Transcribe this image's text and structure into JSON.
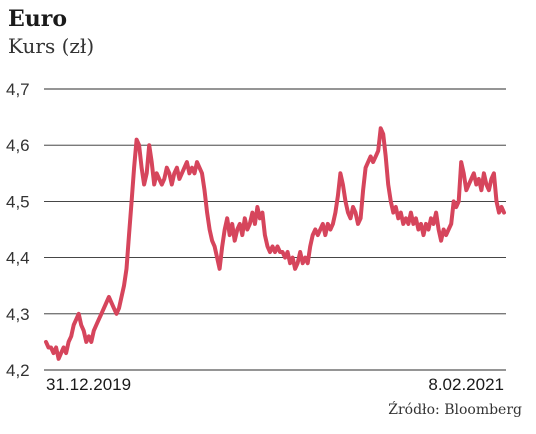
{
  "chart_data": {
    "type": "line",
    "title": "Euro",
    "subtitle": "Kurs (zł)",
    "source": "Źródło: Bloomberg",
    "ylim": [
      4.2,
      4.7
    ],
    "yticks": [
      4.7,
      4.6,
      4.5,
      4.4,
      4.3,
      4.2
    ],
    "ytick_labels": [
      "4,7",
      "4,6",
      "4,5",
      "4,4",
      "4,3",
      "4,2"
    ],
    "grid": true,
    "x_labels": [
      "31.12.2019",
      "8.02.2021"
    ],
    "color": "#d6455c",
    "series": [
      {
        "values": [
          4.25,
          4.24,
          4.24,
          4.23,
          4.24,
          4.22,
          4.23,
          4.24,
          4.23,
          4.25,
          4.26,
          4.28,
          4.29,
          4.3,
          4.28,
          4.27,
          4.25,
          4.26,
          4.25,
          4.27,
          4.28,
          4.29,
          4.3,
          4.31,
          4.32,
          4.33,
          4.32,
          4.31,
          4.3,
          4.31,
          4.33,
          4.35,
          4.38,
          4.44,
          4.5,
          4.56,
          4.61,
          4.6,
          4.56,
          4.53,
          4.55,
          4.6,
          4.57,
          4.53,
          4.55,
          4.54,
          4.53,
          4.54,
          4.56,
          4.55,
          4.53,
          4.55,
          4.56,
          4.54,
          4.55,
          4.56,
          4.57,
          4.55,
          4.56,
          4.55,
          4.57,
          4.56,
          4.55,
          4.52,
          4.48,
          4.45,
          4.43,
          4.42,
          4.4,
          4.38,
          4.42,
          4.45,
          4.47,
          4.44,
          4.46,
          4.43,
          4.45,
          4.46,
          4.44,
          4.47,
          4.45,
          4.46,
          4.48,
          4.46,
          4.49,
          4.47,
          4.48,
          4.44,
          4.42,
          4.41,
          4.42,
          4.41,
          4.42,
          4.41,
          4.41,
          4.4,
          4.41,
          4.39,
          4.4,
          4.38,
          4.39,
          4.41,
          4.39,
          4.4,
          4.39,
          4.42,
          4.44,
          4.45,
          4.44,
          4.45,
          4.46,
          4.44,
          4.46,
          4.45,
          4.46,
          4.48,
          4.51,
          4.55,
          4.53,
          4.5,
          4.48,
          4.47,
          4.49,
          4.48,
          4.46,
          4.47,
          4.52,
          4.56,
          4.57,
          4.58,
          4.57,
          4.58,
          4.59,
          4.63,
          4.62,
          4.58,
          4.53,
          4.5,
          4.48,
          4.49,
          4.47,
          4.48,
          4.46,
          4.47,
          4.46,
          4.48,
          4.46,
          4.47,
          4.45,
          4.46,
          4.44,
          4.46,
          4.45,
          4.47,
          4.46,
          4.48,
          4.45,
          4.43,
          4.45,
          4.44,
          4.45,
          4.46,
          4.5,
          4.49,
          4.5,
          4.57,
          4.55,
          4.52,
          4.53,
          4.54,
          4.55,
          4.53,
          4.54,
          4.52,
          4.55,
          4.53,
          4.52,
          4.54,
          4.55,
          4.5,
          4.48,
          4.49,
          4.48
        ]
      }
    ]
  }
}
